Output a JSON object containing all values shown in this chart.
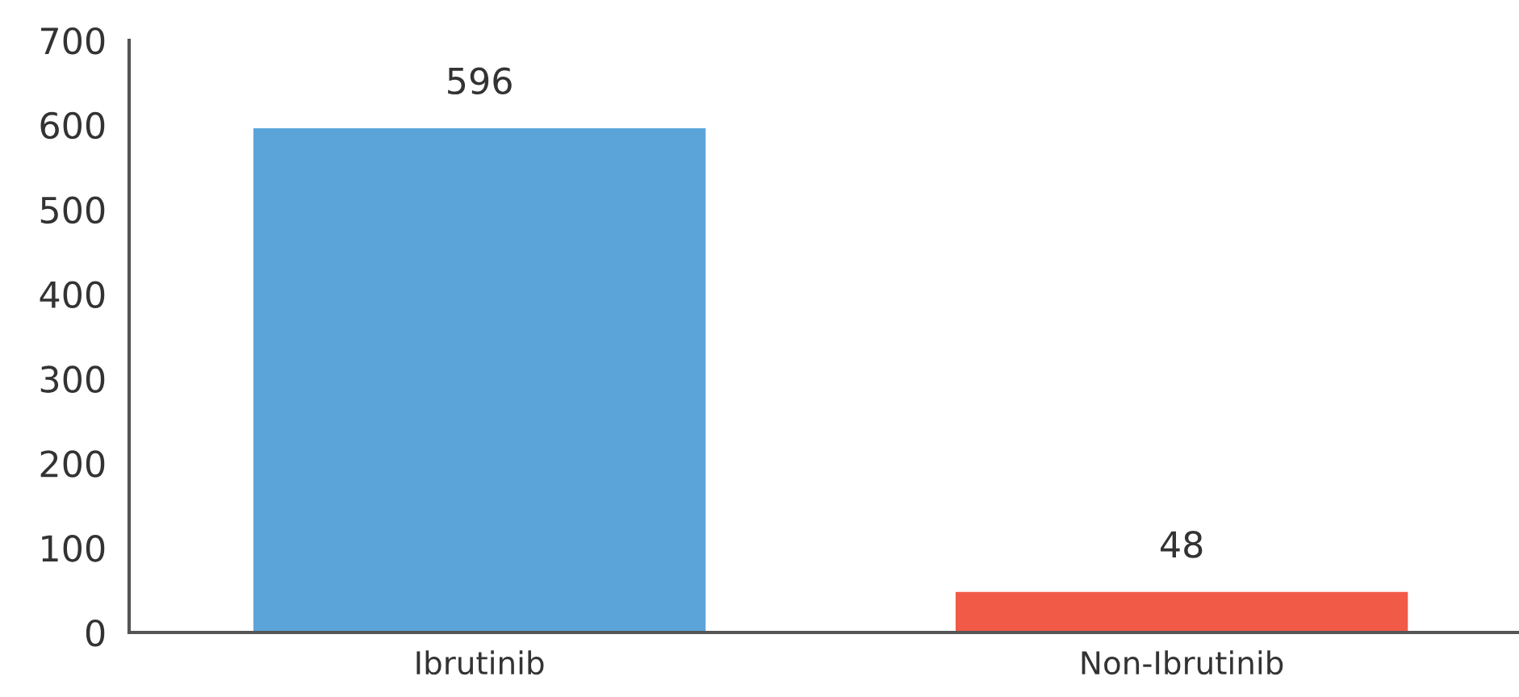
{
  "chart_data": {
    "type": "bar",
    "categories": [
      "Ibrutinib",
      "Non-Ibrutinib"
    ],
    "values": [
      596,
      48
    ],
    "colors": [
      "#5ba4da",
      "#f15a47"
    ],
    "ylim": [
      0,
      700
    ],
    "yticks": [
      0,
      100,
      200,
      300,
      400,
      500,
      600,
      700
    ],
    "data_labels": true,
    "grid": false,
    "legend": false
  }
}
